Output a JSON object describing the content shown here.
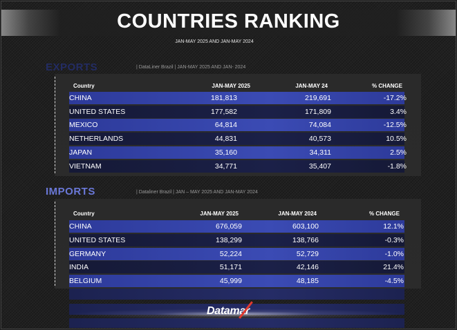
{
  "title": "COUNTRIES RANKING",
  "subtitle": "JAN-MAY 2025 AND JAN-MAY 2024",
  "exports": {
    "heading": "EXPORTS",
    "source": "|  DataLiner Brazil  | JAN-MAY 2025 AND  JAN- 2024",
    "columns": [
      "Country",
      "JAN-MAY 2025",
      "JAN-MAY 24",
      "% CHANGE"
    ],
    "rows": [
      [
        "CHINA",
        "181,813",
        "219,691",
        "-17.2%"
      ],
      [
        "UNITED STATES",
        "177,582",
        "171,809",
        "3.4%"
      ],
      [
        "MEXICO",
        "64,814",
        "74,084",
        "-12.5%"
      ],
      [
        "NETHERLANDS",
        "44,831",
        "40,573",
        "10.5%"
      ],
      [
        "JAPAN",
        "35,160",
        "34,311",
        "2.5%"
      ],
      [
        "VIETNAM",
        "34,771",
        "35,407",
        "-1.8%"
      ]
    ]
  },
  "imports": {
    "heading": "IMPORTS",
    "source": "|  Dataliner Brazil  | JAN – MAY 2025 AND JAN-MAY 2024",
    "columns": [
      "Country",
      "JAN-MAY 2025",
      "JAN-MAY 2024",
      "% CHANGE"
    ],
    "rows": [
      [
        "CHINA",
        "676,059",
        "603,100",
        "12.1%"
      ],
      [
        "UNITED STATES",
        "138,299",
        "138,766",
        "-0.3%"
      ],
      [
        "GERMANY",
        "52,224",
        "52,729",
        "-1.0%"
      ],
      [
        "INDIA",
        "51,171",
        "42,146",
        "21.4%"
      ],
      [
        "BELGIUM",
        "45,999",
        "48,185",
        "-4.5%"
      ]
    ]
  },
  "logo": "Datamar",
  "colors": {
    "row_blue": "#3b4bb4",
    "row_dark": "#1b2048",
    "heading_blue": "#6a78d8",
    "logo_red": "#e03a2f"
  }
}
